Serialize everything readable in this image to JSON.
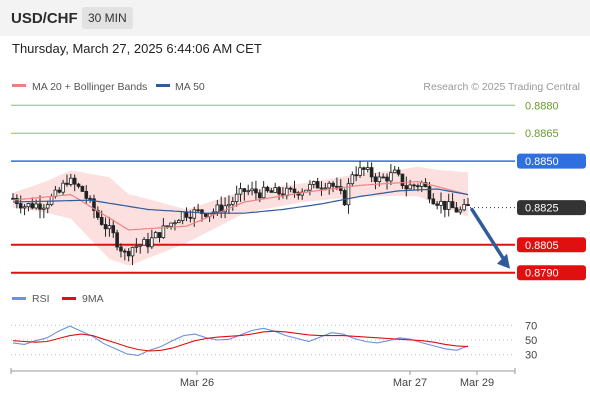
{
  "header": {
    "symbol": "USD/CHF",
    "timeframe": "30 MIN",
    "datetime": "Thursday, March 27, 2025 6:44:06 AM CET"
  },
  "legend": {
    "ma20_label": "MA 20 + Bollinger Bands",
    "ma50_label": "MA 50",
    "rsi_label": "RSI",
    "ma9_label": "9MA"
  },
  "attribution": "Research © 2025 Trading Central",
  "colors": {
    "candle": "#222222",
    "ma20": "#f08080",
    "band_fill": "#fbd5d5",
    "ma50": "#2f5b9b",
    "resistance_line": "#2f6fe0",
    "target_line": "#8bc34a",
    "support_line": "#e01010",
    "arrow": "#2f5b9b",
    "rsi": "#6f8fe0",
    "rsi_ma": "#e01010"
  },
  "chart_data": [
    {
      "type": "candlestick",
      "title": "USD/CHF 30 MIN",
      "ylim": [
        0.8785,
        0.8885
      ],
      "x_tick_labels": [
        "Mar 26",
        "Mar 27",
        "Mar 29"
      ],
      "levels": [
        {
          "value": 0.888,
          "label": "0.8880",
          "role": "target"
        },
        {
          "value": 0.8865,
          "label": "0.8865",
          "role": "target"
        },
        {
          "value": 0.885,
          "label": "0.8850",
          "role": "resistance"
        },
        {
          "value": 0.8825,
          "label": "0.8825",
          "role": "last_price"
        },
        {
          "value": 0.8805,
          "label": "0.8805",
          "role": "support"
        },
        {
          "value": 0.879,
          "label": "0.8790",
          "role": "support"
        }
      ],
      "projection_arrow": {
        "from_price": 0.8825,
        "to_price": 0.879
      },
      "close_path": [
        {
          "i": 0,
          "v": 0.883
        },
        {
          "i": 3,
          "v": 0.8826
        },
        {
          "i": 8,
          "v": 0.8827
        },
        {
          "i": 12,
          "v": 0.8833
        },
        {
          "i": 14,
          "v": 0.884
        },
        {
          "i": 18,
          "v": 0.8834
        },
        {
          "i": 22,
          "v": 0.882
        },
        {
          "i": 26,
          "v": 0.881
        },
        {
          "i": 29,
          "v": 0.88
        },
        {
          "i": 31,
          "v": 0.8804
        },
        {
          "i": 35,
          "v": 0.8806
        },
        {
          "i": 40,
          "v": 0.8815
        },
        {
          "i": 44,
          "v": 0.8822
        },
        {
          "i": 52,
          "v": 0.8823
        },
        {
          "i": 56,
          "v": 0.8827
        },
        {
          "i": 60,
          "v": 0.8834
        },
        {
          "i": 64,
          "v": 0.8833
        },
        {
          "i": 72,
          "v": 0.8833
        },
        {
          "i": 77,
          "v": 0.8836
        },
        {
          "i": 82,
          "v": 0.8839
        },
        {
          "i": 86,
          "v": 0.8829
        },
        {
          "i": 88,
          "v": 0.8844
        },
        {
          "i": 91,
          "v": 0.8845
        },
        {
          "i": 95,
          "v": 0.884
        },
        {
          "i": 99,
          "v": 0.8843
        },
        {
          "i": 102,
          "v": 0.8836
        },
        {
          "i": 106,
          "v": 0.8838
        },
        {
          "i": 109,
          "v": 0.883
        },
        {
          "i": 112,
          "v": 0.8826
        },
        {
          "i": 116,
          "v": 0.8823
        },
        {
          "i": 118,
          "v": 0.8825
        }
      ],
      "ma20_path": [
        {
          "i": 0,
          "v": 0.8829
        },
        {
          "i": 15,
          "v": 0.8832
        },
        {
          "i": 30,
          "v": 0.8813
        },
        {
          "i": 45,
          "v": 0.8815
        },
        {
          "i": 60,
          "v": 0.8828
        },
        {
          "i": 75,
          "v": 0.8833
        },
        {
          "i": 90,
          "v": 0.8837
        },
        {
          "i": 105,
          "v": 0.8839
        },
        {
          "i": 118,
          "v": 0.8832
        }
      ],
      "bollinger_halfwidth_path": [
        {
          "i": 0,
          "v": 0.0004
        },
        {
          "i": 8,
          "v": 0.0008
        },
        {
          "i": 15,
          "v": 0.0013
        },
        {
          "i": 25,
          "v": 0.0022
        },
        {
          "i": 32,
          "v": 0.0018
        },
        {
          "i": 45,
          "v": 0.0009
        },
        {
          "i": 60,
          "v": 0.0006
        },
        {
          "i": 75,
          "v": 0.0005
        },
        {
          "i": 88,
          "v": 0.0006
        },
        {
          "i": 100,
          "v": 0.0007
        },
        {
          "i": 110,
          "v": 0.0009
        },
        {
          "i": 118,
          "v": 0.0012
        }
      ],
      "ma50_path": [
        {
          "i": 0,
          "v": 0.8828
        },
        {
          "i": 20,
          "v": 0.8829
        },
        {
          "i": 35,
          "v": 0.8824
        },
        {
          "i": 50,
          "v": 0.8822
        },
        {
          "i": 60,
          "v": 0.8822
        },
        {
          "i": 70,
          "v": 0.8824
        },
        {
          "i": 80,
          "v": 0.8827
        },
        {
          "i": 90,
          "v": 0.8831
        },
        {
          "i": 100,
          "v": 0.8834
        },
        {
          "i": 110,
          "v": 0.8835
        },
        {
          "i": 118,
          "v": 0.8832
        }
      ],
      "candle_count": 119
    },
    {
      "type": "line",
      "title": "RSI",
      "ylim": [
        20,
        80
      ],
      "y_ticks": [
        30,
        50,
        70
      ],
      "series": [
        {
          "name": "RSI",
          "values": [
            46,
            44,
            49,
            53,
            62,
            69,
            62,
            55,
            45,
            38,
            31,
            29,
            36,
            41,
            49,
            56,
            58,
            53,
            50,
            51,
            57,
            63,
            66,
            62,
            56,
            52,
            48,
            54,
            60,
            58,
            52,
            48,
            46,
            49,
            53,
            51,
            46,
            42,
            38,
            36,
            42
          ]
        },
        {
          "name": "9MA",
          "values": [
            49,
            48,
            47,
            48,
            52,
            56,
            58,
            56,
            51,
            46,
            41,
            37,
            35,
            36,
            39,
            44,
            49,
            52,
            54,
            55,
            56,
            58,
            61,
            62,
            61,
            59,
            57,
            56,
            56,
            56,
            55,
            54,
            53,
            52,
            51,
            50,
            49,
            47,
            44,
            42,
            41
          ]
        }
      ]
    }
  ]
}
